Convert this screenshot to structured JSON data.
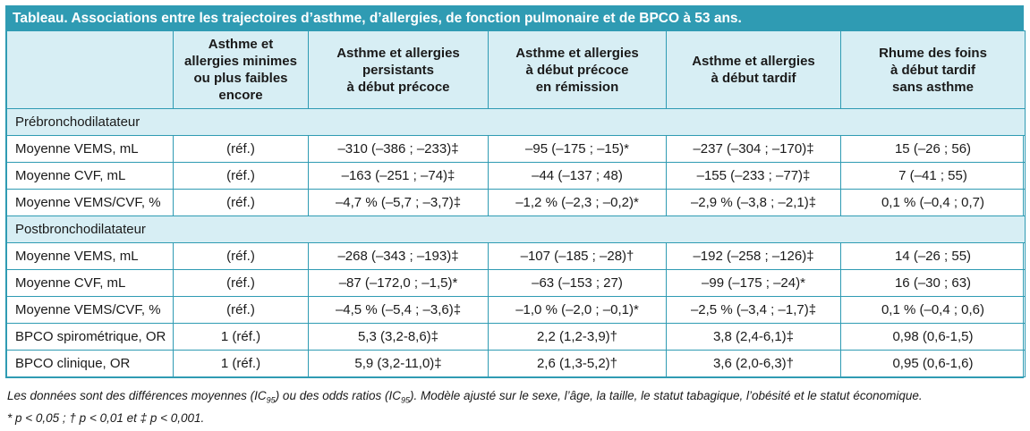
{
  "title": "Tableau. Associations entre les trajectoires d’asthme, d’allergies, de fonction pulmonaire et de BPCO à 53 ans.",
  "columns": [
    "",
    "Asthme et\nallergies minimes\nou plus faibles\nencore",
    "Asthme et allergies\npersistants\nà début précoce",
    "Asthme et allergies\nà début précoce\nen rémission",
    "Asthme et allergies\nà début tardif",
    "Rhume des foins\nà début tardif\nsans asthme"
  ],
  "sections": [
    {
      "label": "Prébronchodilatateur",
      "rows": [
        [
          "Moyenne VEMS, mL",
          "(réf.)",
          "–310 (–386 ; –233)‡",
          "–95 (–175 ; –15)*",
          "–237 (–304 ; –170)‡",
          "15 (–26 ; 56)"
        ],
        [
          "Moyenne CVF, mL",
          "(réf.)",
          "–163 (–251 ; –74)‡",
          "–44 (–137 ; 48)",
          "–155 (–233 ; –77)‡",
          "7 (–41 ; 55)"
        ],
        [
          "Moyenne VEMS/CVF, %",
          "(réf.)",
          "–4,7 % (–5,7 ; –3,7)‡",
          "–1,2 % (–2,3 ; –0,2)*",
          "–2,9 % (–3,8 ; –2,1)‡",
          "0,1 % (–0,4 ; 0,7)"
        ]
      ]
    },
    {
      "label": "Postbronchodilatateur",
      "rows": [
        [
          "Moyenne VEMS, mL",
          "(réf.)",
          "–268 (–343 ; –193)‡",
          "–107 (–185 ; –28)†",
          "–192 (–258 ; –126)‡",
          "14 (–26 ; 55)"
        ],
        [
          "Moyenne CVF, mL",
          "(réf.)",
          "–87 (–172,0 ; –1,5)*",
          "–63 (–153 ; 27)",
          "–99 (–175 ; –24)*",
          "16 (–30 ; 63)"
        ],
        [
          "Moyenne VEMS/CVF, %",
          "(réf.)",
          "–4,5 % (–5,4 ; –3,6)‡",
          "–1,0 % (–2,0 ; –0,1)*",
          "–2,5 % (–3,4 ; –1,7)‡",
          "0,1 % (–0,4 ; 0,6)"
        ],
        [
          "BPCO spirométrique, OR",
          "1 (réf.)",
          "5,3 (3,2-8,6)‡",
          "2,2 (1,2-3,9)†",
          "3,8 (2,4-6,1)‡",
          "0,98 (0,6-1,5)"
        ],
        [
          "BPCO clinique, OR",
          "1 (réf.)",
          "5,9 (3,2-11,0)‡",
          "2,6 (1,3-5,2)†",
          "3,6 (2,0-6,3)†",
          "0,95 (0,6-1,6)"
        ]
      ]
    }
  ],
  "footnotes": {
    "line1_a": "Les données sont des différences moyennes (IC",
    "sub": "95",
    "line1_b": ") ou des odds ratios (IC",
    "line1_c": "). Modèle ajusté sur le sexe, l’âge, la taille, le statut tabagique, l’obésité et le statut économique.",
    "line2": "* p < 0,05 ; † p < 0,01 et ‡ p < 0,001."
  },
  "colors": {
    "accent": "#2f9bb3",
    "header_bg": "#d7eef4"
  }
}
